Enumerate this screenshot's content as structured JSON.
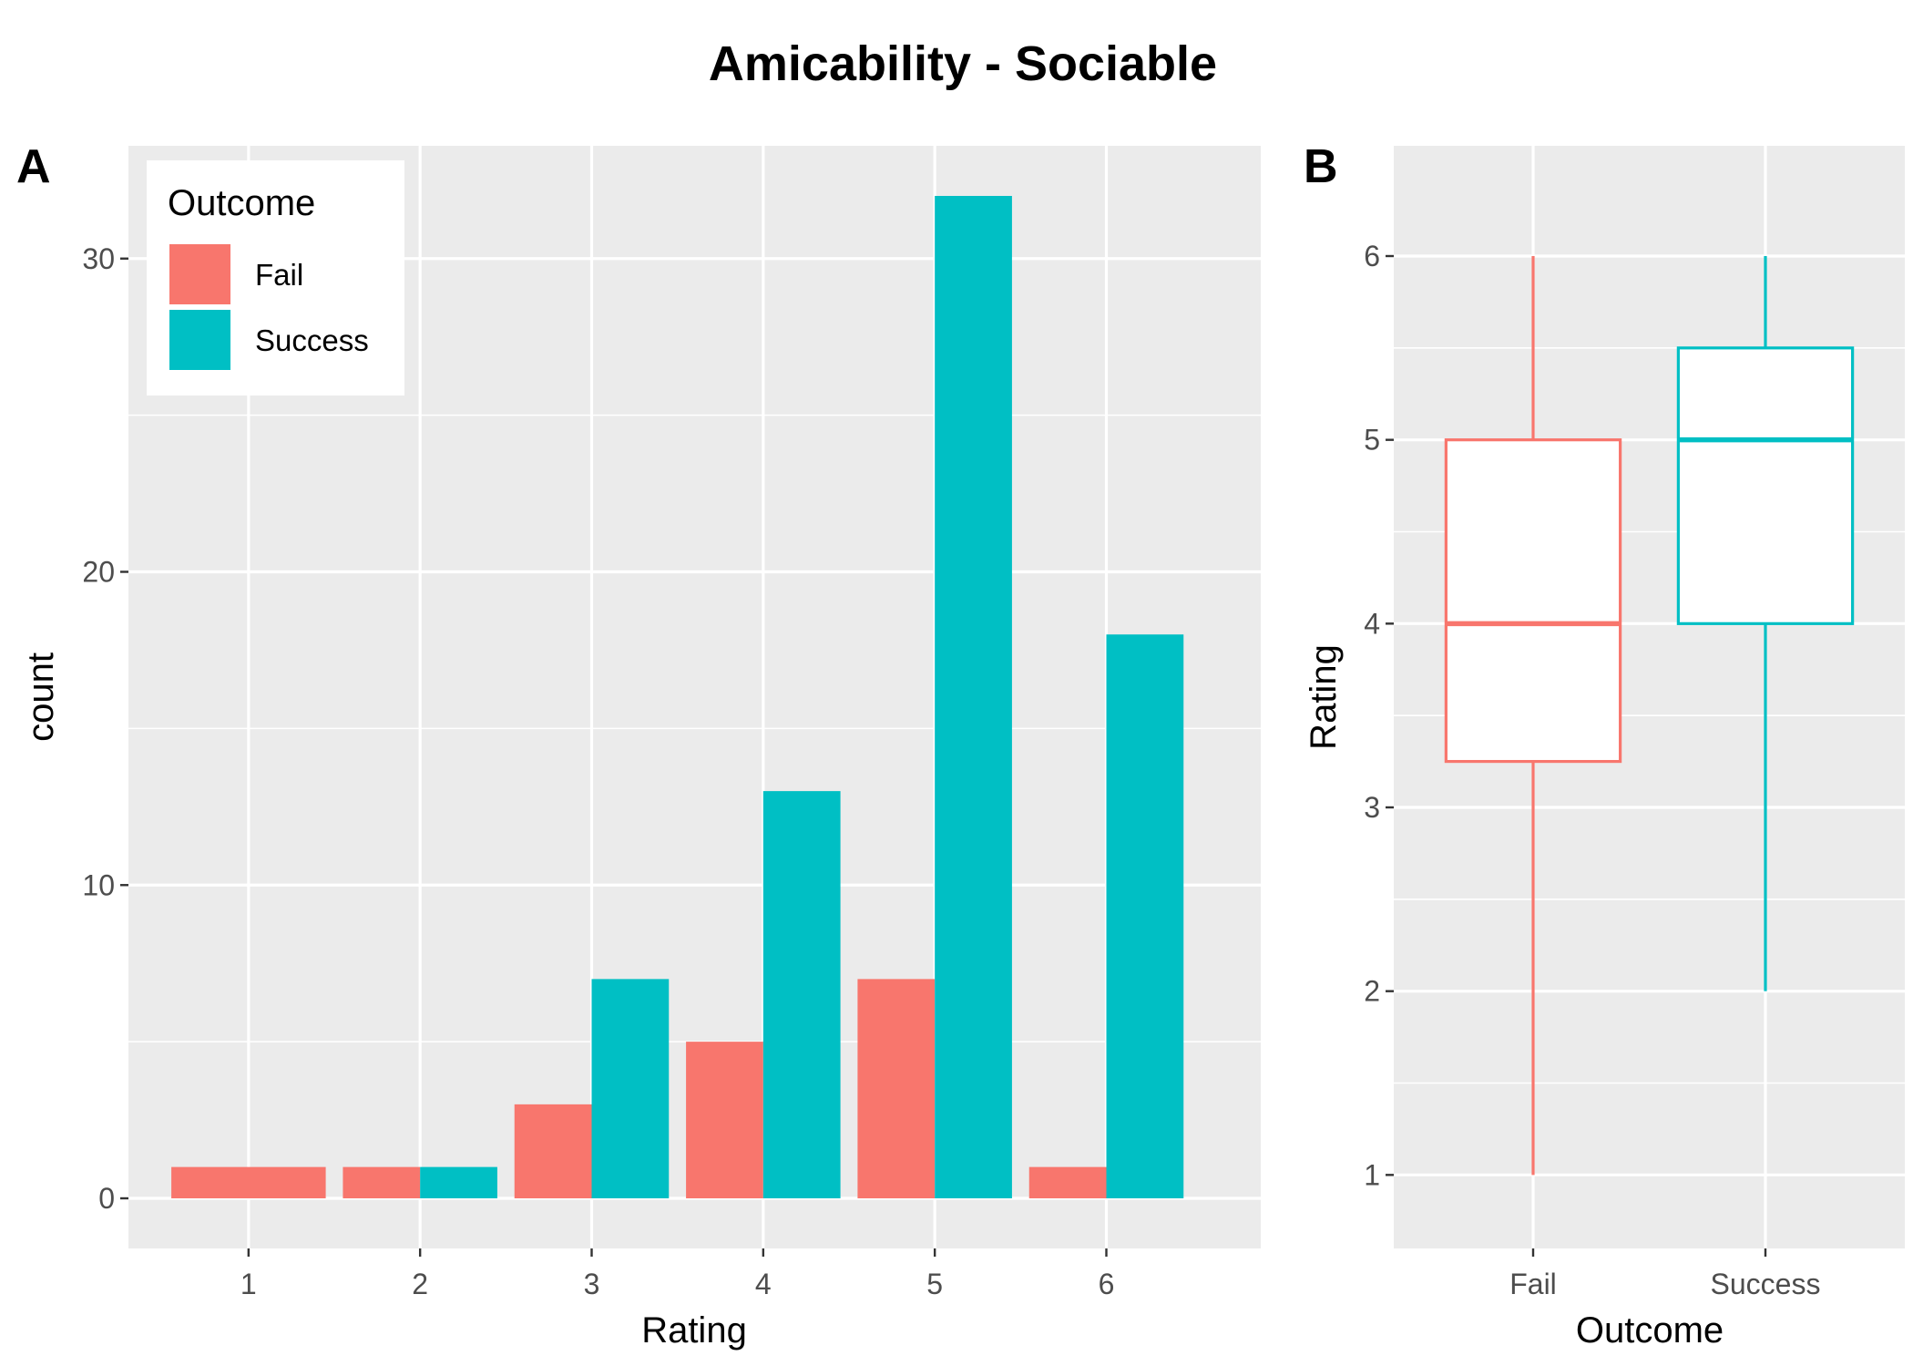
{
  "figure": {
    "title": "Amicability - Sociable",
    "colors": {
      "panel_bg": "#ebebeb",
      "grid": "#ffffff",
      "tick": "#4d4d4d"
    }
  },
  "chart_data": [
    {
      "type": "bar",
      "tag": "A",
      "xlabel": "Rating",
      "ylabel": "count",
      "categories": [
        "1",
        "2",
        "3",
        "4",
        "5",
        "6"
      ],
      "x_ticks": [
        "1",
        "2",
        "3",
        "4",
        "5",
        "6"
      ],
      "y_ticks": [
        "0",
        "10",
        "20",
        "30"
      ],
      "ylim": [
        -1.6,
        33.6
      ],
      "xlim": [
        0.3,
        6.9
      ],
      "series": [
        {
          "name": "Fail",
          "color": "#F8766D",
          "values": [
            1,
            1,
            3,
            5,
            7,
            1
          ]
        },
        {
          "name": "Success",
          "color": "#00BFC4",
          "values": [
            0,
            1,
            7,
            13,
            32,
            18
          ]
        }
      ],
      "legend": {
        "title": "Outcome",
        "position": "top-left",
        "entries": [
          {
            "label": "Fail",
            "color": "#F8766D"
          },
          {
            "label": "Success",
            "color": "#00BFC4"
          }
        ]
      },
      "grid": true
    },
    {
      "type": "box",
      "tag": "B",
      "xlabel": "Outcome",
      "ylabel": "Rating",
      "categories": [
        "Fail",
        "Success"
      ],
      "x_ticks": [
        "Fail",
        "Success"
      ],
      "y_ticks": [
        "1",
        "2",
        "3",
        "4",
        "5",
        "6"
      ],
      "ylim": [
        0.6,
        6.6
      ],
      "boxes": [
        {
          "name": "Fail",
          "color": "#F8766D",
          "min": 1,
          "q1": 3.25,
          "median": 4,
          "q3": 5,
          "max": 6
        },
        {
          "name": "Success",
          "color": "#00BFC4",
          "min": 2,
          "q1": 4,
          "median": 5,
          "q3": 5.5,
          "max": 6
        }
      ],
      "grid": true
    }
  ]
}
